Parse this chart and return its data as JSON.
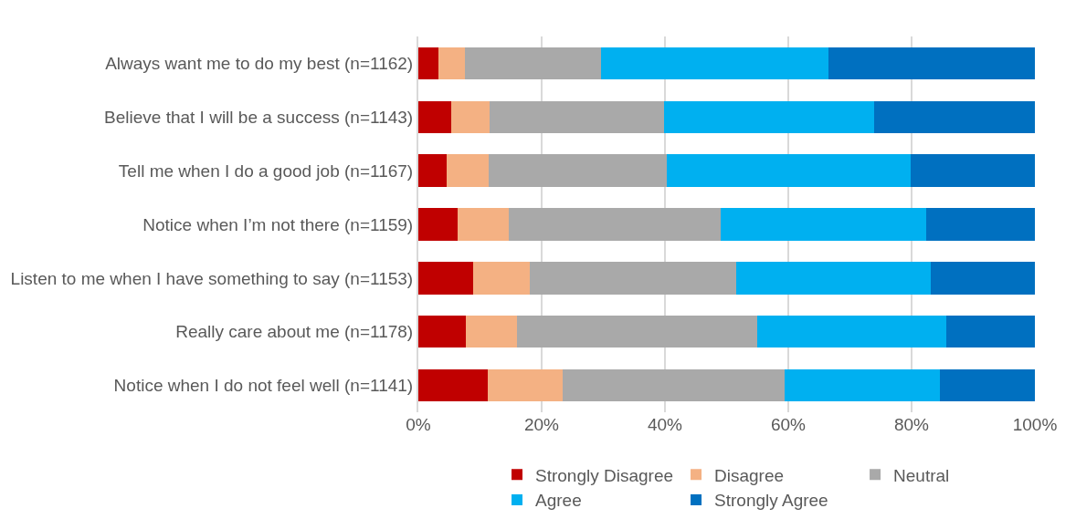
{
  "chart_data": {
    "type": "bar",
    "orientation": "horizontal",
    "stacked": true,
    "categories": [
      "Always want me to do my best (n=1162)",
      "Believe that I will be a success (n=1143)",
      "Tell me when I do a good job (n=1167)",
      "Notice when I’m not there (n=1159)",
      "Listen to me when I have something to say (n=1153)",
      "Really care about me (n=1178)",
      "Notice when I do not feel well (n=1141)"
    ],
    "series": [
      {
        "name": "Strongly Disagree",
        "color": "#c00000",
        "values": [
          3.3,
          5.3,
          4.6,
          6.4,
          8.9,
          7.7,
          11.3
        ]
      },
      {
        "name": "Disagree",
        "color": "#f4b183",
        "values": [
          4.2,
          6.2,
          6.8,
          8.2,
          9.2,
          8.3,
          12.1
        ]
      },
      {
        "name": "Neutral",
        "color": "#a9a9a9",
        "values": [
          22.1,
          28.4,
          28.9,
          34.5,
          33.5,
          38.9,
          36.0
        ]
      },
      {
        "name": "Agree",
        "color": "#00b0f0",
        "values": [
          36.9,
          34.0,
          39.5,
          33.3,
          31.5,
          30.8,
          25.2
        ]
      },
      {
        "name": "Strongly Agree",
        "color": "#0070c0",
        "values": [
          33.5,
          26.1,
          20.2,
          17.6,
          16.9,
          14.3,
          15.4
        ]
      }
    ],
    "xlim": [
      0,
      100
    ],
    "xticks": [
      {
        "value": 0,
        "label": "0%"
      },
      {
        "value": 20,
        "label": "20%"
      },
      {
        "value": 40,
        "label": "40%"
      },
      {
        "value": 60,
        "label": "60%"
      },
      {
        "value": 80,
        "label": "80%"
      },
      {
        "value": 100,
        "label": "100%"
      }
    ],
    "grid": "x",
    "legend": "bottom"
  }
}
